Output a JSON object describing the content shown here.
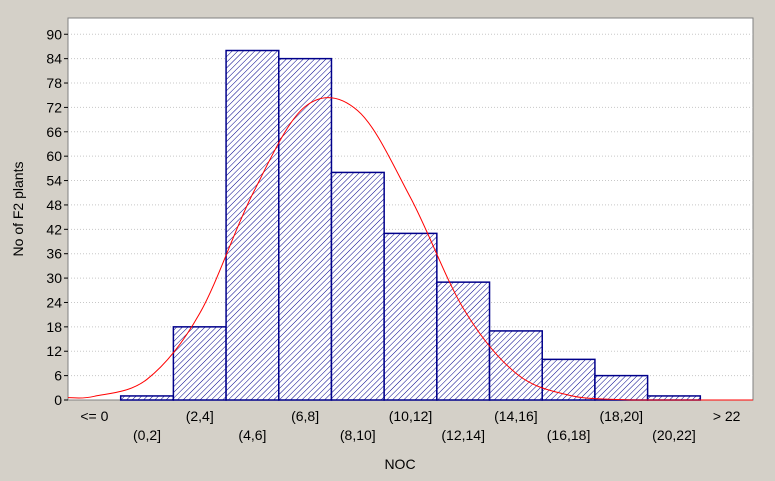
{
  "chart_data": {
    "type": "bar",
    "title": "",
    "xlabel": "NOC",
    "ylabel": "No of F2 plants",
    "categories": [
      "<= 0",
      "(0,2]",
      "(2,4]",
      "(4,6]",
      "(6,8]",
      "(8,10]",
      "(10,12]",
      "(12,14]",
      "(14,16]",
      "(16,18]",
      "(18,20]",
      "(20,22]",
      "> 22"
    ],
    "values": [
      0,
      1,
      18,
      86,
      84,
      56,
      41,
      29,
      17,
      10,
      6,
      1,
      0
    ],
    "yticks": [
      0,
      6,
      12,
      18,
      24,
      30,
      36,
      42,
      48,
      54,
      60,
      66,
      72,
      78,
      84,
      90
    ],
    "ylim": [
      0,
      94
    ],
    "grid": true,
    "bar_pattern": "diagonal-hatch",
    "colors": {
      "bar_stroke": "#00008b",
      "curve": "#ff0000",
      "background": "#d4d0c8",
      "plot_bg": "#ffffff"
    },
    "fit_curve": {
      "type": "normal",
      "x": [
        -1,
        1,
        3,
        5,
        7,
        9,
        11,
        13,
        15,
        17,
        19,
        21,
        23
      ],
      "y": [
        0.9,
        5.1,
        21.3,
        50.6,
        72.2,
        71.2,
        49.8,
        22.6,
        6.6,
        1.2,
        0.1,
        0.0,
        0.0
      ]
    }
  }
}
